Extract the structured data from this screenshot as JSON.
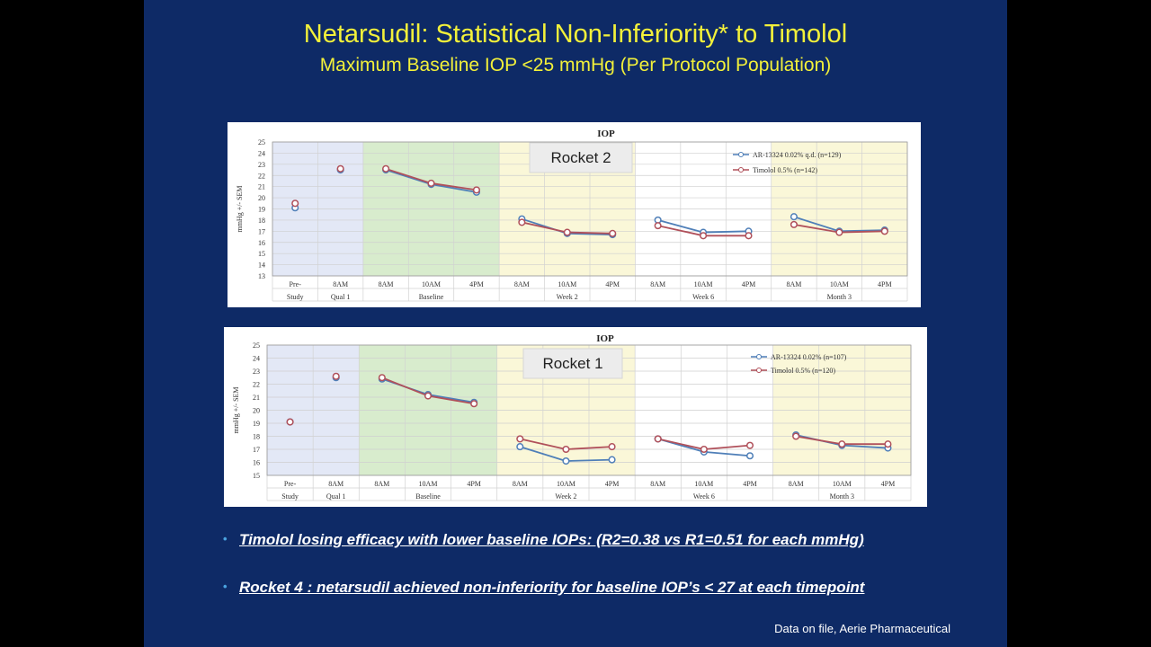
{
  "slide": {
    "title": "Netarsudil:  Statistical Non-Inferiority* to Timolol",
    "subtitle": "Maximum Baseline IOP <25 mmHg (Per Protocol Population)",
    "bullets": [
      "Timolol losing efficacy with lower baseline IOPs:  (R2=0.38 vs R1=0.51 for each mmHg)",
      "Rocket 4 :  netarsudil achieved non-inferiority for baseline IOP’s < 27  at each timepoint"
    ],
    "footer": "Data on file, Aerie Pharmaceutical"
  },
  "colors": {
    "slide_bg": "#0e2a66",
    "title": "#f2f03a",
    "series_blue": "#4f7fb8",
    "series_red": "#b0505a",
    "band_blue": "#e3e8f6",
    "band_green": "#d8eccd",
    "band_yellow": "#faf7d8"
  },
  "chart_data": [
    {
      "type": "line",
      "title": "IOP",
      "label_box": "Rocket 2",
      "ylabel": "mmHg +/- SEM",
      "ylim": [
        13,
        25
      ],
      "yticks": [
        "13",
        "14",
        "15",
        "16",
        "17",
        "18",
        "19",
        "20",
        "21",
        "22",
        "23",
        "24",
        "25"
      ],
      "categories": [
        "Pre-",
        "8AM",
        "8AM",
        "10AM",
        "4PM",
        "8AM",
        "10AM",
        "4PM",
        "8AM",
        "10AM",
        "4PM",
        "8AM",
        "10AM",
        "4PM"
      ],
      "groups": [
        {
          "label": "Study",
          "from": 0,
          "to": 0,
          "band": "blue"
        },
        {
          "label": "Qual 1",
          "from": 1,
          "to": 1,
          "band": "blue"
        },
        {
          "label": "Baseline",
          "from": 2,
          "to": 4,
          "band": "green"
        },
        {
          "label": "Week 2",
          "from": 5,
          "to": 7,
          "band": "yellow"
        },
        {
          "label": "Week 6",
          "from": 8,
          "to": 10,
          "band": "white"
        },
        {
          "label": "Month 3",
          "from": 11,
          "to": 13,
          "band": "yellow"
        }
      ],
      "legend": [
        "AR-13324 0.02% q.d. (n=129)",
        "Timolol 0.5% (n=142)"
      ],
      "legend_position": "top-right",
      "series": [
        {
          "name": "AR-13324 0.02% q.d. (n=129)",
          "color": "#4f7fb8",
          "values": [
            19.1,
            22.5,
            22.5,
            21.2,
            20.5,
            18.1,
            16.8,
            16.7,
            18.0,
            16.9,
            17.0,
            18.3,
            17.0,
            17.1
          ]
        },
        {
          "name": "Timolol 0.5% (n=142)",
          "color": "#b0505a",
          "values": [
            19.5,
            22.6,
            22.6,
            21.3,
            20.7,
            17.8,
            16.9,
            16.8,
            17.5,
            16.6,
            16.6,
            17.6,
            16.9,
            17.0
          ]
        }
      ]
    },
    {
      "type": "line",
      "title": "IOP",
      "label_box": "Rocket 1",
      "ylabel": "mmHg +/- SEM",
      "ylim": [
        15,
        25
      ],
      "yticks": [
        "15",
        "16",
        "17",
        "18",
        "19",
        "20",
        "21",
        "22",
        "23",
        "24",
        "25"
      ],
      "categories": [
        "Pre-",
        "8AM",
        "8AM",
        "10AM",
        "4PM",
        "8AM",
        "10AM",
        "4PM",
        "8AM",
        "10AM",
        "4PM",
        "8AM",
        "10AM",
        "4PM"
      ],
      "groups": [
        {
          "label": "Study",
          "from": 0,
          "to": 0,
          "band": "blue"
        },
        {
          "label": "Qual 1",
          "from": 1,
          "to": 1,
          "band": "blue"
        },
        {
          "label": "Baseline",
          "from": 2,
          "to": 4,
          "band": "green"
        },
        {
          "label": "Week 2",
          "from": 5,
          "to": 7,
          "band": "yellow"
        },
        {
          "label": "Week 6",
          "from": 8,
          "to": 10,
          "band": "white"
        },
        {
          "label": "Month 3",
          "from": 11,
          "to": 13,
          "band": "yellow"
        }
      ],
      "legend": [
        "AR-13324 0.02% (n=107)",
        "Timolol 0.5% (n=120)"
      ],
      "legend_position": "top-right",
      "series": [
        {
          "name": "AR-13324 0.02% (n=107)",
          "color": "#4f7fb8",
          "values": [
            19.1,
            22.5,
            22.4,
            21.2,
            20.6,
            17.2,
            16.1,
            16.2,
            17.8,
            16.8,
            16.5,
            18.1,
            17.3,
            17.1
          ]
        },
        {
          "name": "Timolol 0.5% (n=120)",
          "color": "#b0505a",
          "values": [
            19.1,
            22.6,
            22.5,
            21.1,
            20.5,
            17.8,
            17.0,
            17.2,
            17.8,
            17.0,
            17.3,
            18.0,
            17.4,
            17.4
          ]
        }
      ]
    }
  ]
}
